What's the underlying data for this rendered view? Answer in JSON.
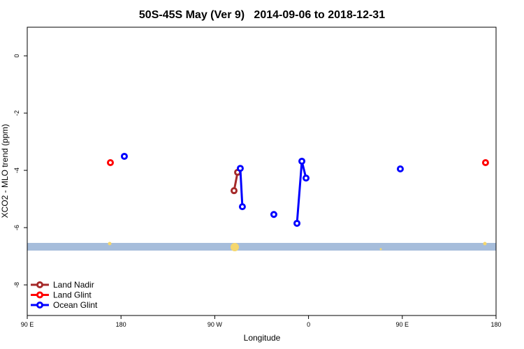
{
  "chart_data": {
    "type": "line",
    "title": "50S-45S May (Ver 9)   2014-09-06 to 2018-12-31",
    "xlabel": "Longitude",
    "ylabel": "XCO2 - MLO trend (ppm)",
    "xlim": [
      90,
      540
    ],
    "ylim": [
      -9.07,
      1
    ],
    "xticks": [
      {
        "value": 90,
        "label": "90 E"
      },
      {
        "value": 180,
        "label": "180"
      },
      {
        "value": 270,
        "label": "90 W"
      },
      {
        "value": 360,
        "label": "0"
      },
      {
        "value": 450,
        "label": "90 E"
      },
      {
        "value": 540,
        "label": "180"
      }
    ],
    "yticks": [
      0,
      -2,
      -4,
      -6,
      -8
    ],
    "legend": "bottom-left",
    "series": [
      {
        "name": "Land Nadir",
        "color": "#a52a2a",
        "x": [
          288.5,
          291.9
        ],
        "values": [
          -4.71,
          -4.07
        ]
      },
      {
        "name": "Land Glint",
        "color": "#ff0000",
        "x": [
          169.8,
          null,
          529.9
        ],
        "values": [
          -3.73,
          null,
          -3.73
        ]
      },
      {
        "name": "Ocean Glint",
        "color": "#0000ff",
        "x": [
          183.2,
          null,
          294.5,
          296.5,
          null,
          326.7,
          null,
          348.9,
          353.6,
          357.6,
          null,
          448.1
        ],
        "values": [
          -3.51,
          null,
          -3.93,
          -5.27,
          null,
          -5.54,
          null,
          -5.85,
          -3.68,
          -4.27,
          null,
          -3.95
        ]
      }
    ]
  }
}
